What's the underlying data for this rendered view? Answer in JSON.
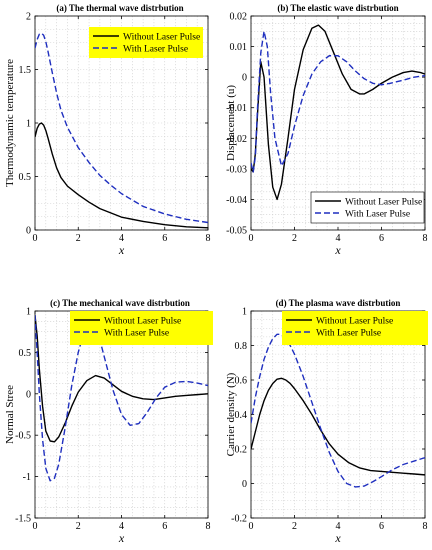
{
  "chart_data": [
    {
      "type": "line",
      "title": "(a) The thermal wave distrbution",
      "xlabel": "x",
      "ylabel": "Thermodynamic temperature",
      "xlim": [
        0,
        8
      ],
      "ylim": [
        0,
        2
      ],
      "xticks": [
        0,
        2,
        4,
        6,
        8
      ],
      "xtick_labels": [
        "0",
        "2",
        "4",
        "6",
        "8"
      ],
      "yticks": [
        0,
        0.5,
        1,
        1.5,
        2
      ],
      "ytick_labels": [
        "0",
        "0.5",
        "1",
        "1.5",
        "2"
      ],
      "grid": true,
      "legend": "top-right",
      "legend_bg": "#ffff00",
      "series": [
        {
          "name": "Without Laser Pulse",
          "style": "solid",
          "color": "#000000",
          "x": [
            0,
            0.1,
            0.2,
            0.3,
            0.4,
            0.5,
            0.6,
            0.8,
            1.0,
            1.2,
            1.5,
            2.0,
            2.5,
            3.0,
            3.5,
            4.0,
            5.0,
            6.0,
            7.0,
            8.0
          ],
          "y": [
            0.87,
            0.95,
            0.99,
            1.0,
            0.98,
            0.93,
            0.86,
            0.71,
            0.58,
            0.49,
            0.41,
            0.33,
            0.26,
            0.2,
            0.16,
            0.12,
            0.08,
            0.05,
            0.03,
            0.02
          ]
        },
        {
          "name": "With Laser Pulse",
          "style": "dashed",
          "color": "#1f2fbf",
          "x": [
            0,
            0.1,
            0.2,
            0.3,
            0.4,
            0.5,
            0.6,
            0.8,
            1.0,
            1.2,
            1.5,
            2.0,
            2.5,
            3.0,
            3.5,
            4.0,
            5.0,
            6.0,
            7.0,
            8.0
          ],
          "y": [
            1.7,
            1.78,
            1.83,
            1.84,
            1.82,
            1.76,
            1.67,
            1.47,
            1.28,
            1.12,
            0.96,
            0.77,
            0.63,
            0.51,
            0.42,
            0.34,
            0.22,
            0.15,
            0.1,
            0.07
          ]
        }
      ]
    },
    {
      "type": "line",
      "title": "(b) The elastic wave distrbution",
      "xlabel": "x",
      "ylabel": "Displacement (u)",
      "xlim": [
        0,
        8
      ],
      "ylim": [
        -0.05,
        0.02
      ],
      "xticks": [
        0,
        2,
        4,
        6,
        8
      ],
      "xtick_labels": [
        "0",
        "2",
        "4",
        "6",
        "8"
      ],
      "yticks": [
        -0.05,
        -0.04,
        -0.03,
        -0.02,
        -0.01,
        0,
        0.01,
        0.02
      ],
      "ytick_labels": [
        "-0.05",
        "-0.04",
        "-0.03",
        "-0.02",
        "-0.01",
        "0",
        "0.01",
        "0.02"
      ],
      "grid": true,
      "legend": "bottom-right",
      "legend_bg": "#ffffff",
      "series": [
        {
          "name": "Without Laser Pulse",
          "style": "solid",
          "color": "#000000",
          "x": [
            0,
            0.1,
            0.2,
            0.3,
            0.45,
            0.6,
            0.8,
            1.0,
            1.2,
            1.4,
            1.7,
            2.0,
            2.4,
            2.8,
            3.1,
            3.4,
            3.8,
            4.2,
            4.6,
            5.0,
            5.2,
            5.6,
            6.0,
            6.5,
            7.0,
            7.4,
            7.8,
            8.0
          ],
          "y": [
            -0.03,
            -0.031,
            -0.025,
            -0.012,
            0.005,
            0.0,
            -0.022,
            -0.036,
            -0.04,
            -0.035,
            -0.02,
            -0.004,
            0.009,
            0.016,
            0.017,
            0.015,
            0.008,
            0.001,
            -0.004,
            -0.0055,
            -0.0055,
            -0.004,
            -0.002,
            0.0,
            0.0015,
            0.002,
            0.0015,
            0.001
          ]
        },
        {
          "name": "With Laser Pulse",
          "style": "dashed",
          "color": "#1f2fbf",
          "x": [
            0,
            0.1,
            0.2,
            0.3,
            0.45,
            0.6,
            0.75,
            0.9,
            1.1,
            1.4,
            1.7,
            2.0,
            2.4,
            2.8,
            3.2,
            3.6,
            4.0,
            4.4,
            4.8,
            5.2,
            5.6,
            6.0,
            6.4,
            7.0,
            7.5,
            8.0
          ],
          "y": [
            -0.028,
            -0.031,
            -0.026,
            -0.01,
            0.008,
            0.015,
            0.01,
            -0.005,
            -0.02,
            -0.029,
            -0.025,
            -0.016,
            -0.006,
            0.001,
            0.005,
            0.007,
            0.007,
            0.005,
            0.002,
            -0.0005,
            -0.002,
            -0.0025,
            -0.002,
            -0.001,
            0.0,
            0.0005
          ]
        }
      ]
    },
    {
      "type": "line",
      "title": "(c) The mechanical wave distrbution",
      "xlabel": "x",
      "ylabel": "Normal Stree",
      "xlim": [
        0,
        8
      ],
      "ylim": [
        -1.5,
        1
      ],
      "xticks": [
        0,
        2,
        4,
        6,
        8
      ],
      "xtick_labels": [
        "0",
        "2",
        "4",
        "6",
        "8"
      ],
      "yticks": [
        -1.5,
        -1,
        -0.5,
        0,
        0.5,
        1
      ],
      "ytick_labels": [
        "-1.5",
        "-1",
        "-0.5",
        "0",
        "0.5",
        "1"
      ],
      "grid": true,
      "legend": "top-right",
      "legend_bg": "#ffff00",
      "series": [
        {
          "name": "Without Laser Pulse",
          "style": "solid",
          "color": "#000000",
          "x": [
            0,
            0.1,
            0.2,
            0.35,
            0.5,
            0.7,
            0.9,
            1.1,
            1.4,
            1.7,
            2.0,
            2.4,
            2.8,
            3.2,
            3.6,
            4.0,
            4.5,
            5.0,
            5.5,
            6.0,
            6.5,
            7.0,
            7.5,
            8.0
          ],
          "y": [
            0.95,
            0.7,
            0.3,
            -0.15,
            -0.45,
            -0.57,
            -0.58,
            -0.52,
            -0.35,
            -0.15,
            0.02,
            0.16,
            0.22,
            0.19,
            0.11,
            0.03,
            -0.03,
            -0.06,
            -0.07,
            -0.05,
            -0.03,
            -0.02,
            -0.01,
            0.0
          ]
        },
        {
          "name": "With Laser Pulse",
          "style": "dashed",
          "color": "#1f2fbf",
          "x": [
            0,
            0.1,
            0.2,
            0.35,
            0.5,
            0.7,
            0.9,
            1.1,
            1.4,
            1.7,
            2.0,
            2.3,
            2.6,
            2.9,
            3.2,
            3.6,
            4.0,
            4.4,
            4.8,
            5.2,
            5.6,
            6.0,
            6.5,
            7.0,
            7.5,
            8.0
          ],
          "y": [
            0.95,
            0.5,
            0.0,
            -0.55,
            -0.9,
            -1.05,
            -1.02,
            -0.85,
            -0.4,
            0.1,
            0.5,
            0.78,
            0.86,
            0.75,
            0.45,
            0.05,
            -0.25,
            -0.38,
            -0.36,
            -0.22,
            -0.05,
            0.08,
            0.14,
            0.15,
            0.13,
            0.1
          ]
        }
      ]
    },
    {
      "type": "line",
      "title": "(d) The plasma wave distrbution",
      "xlabel": "x",
      "ylabel": "Carrier density (N)",
      "xlim": [
        0,
        8
      ],
      "ylim": [
        -0.2,
        1
      ],
      "xticks": [
        0,
        2,
        4,
        6,
        8
      ],
      "xtick_labels": [
        "0",
        "2",
        "4",
        "6",
        "8"
      ],
      "yticks": [
        -0.2,
        0,
        0.2,
        0.4,
        0.6,
        0.8,
        1
      ],
      "ytick_labels": [
        "-0.2",
        "0",
        "0.2",
        "0.4",
        "0.6",
        "0.8",
        "1"
      ],
      "grid": true,
      "legend": "top-right",
      "legend_bg": "#ffff00",
      "series": [
        {
          "name": "Without Laser Pulse",
          "style": "solid",
          "color": "#000000",
          "x": [
            0,
            0.2,
            0.4,
            0.6,
            0.8,
            1.0,
            1.2,
            1.4,
            1.6,
            1.8,
            2.0,
            2.4,
            2.8,
            3.2,
            3.6,
            4.0,
            4.5,
            5.0,
            5.5,
            6.0,
            6.5,
            7.0,
            7.5,
            8.0
          ],
          "y": [
            0.2,
            0.3,
            0.4,
            0.48,
            0.54,
            0.58,
            0.605,
            0.61,
            0.6,
            0.58,
            0.55,
            0.48,
            0.4,
            0.31,
            0.23,
            0.17,
            0.12,
            0.09,
            0.075,
            0.07,
            0.065,
            0.06,
            0.055,
            0.05
          ]
        },
        {
          "name": "With Laser Pulse",
          "style": "dashed",
          "color": "#1f2fbf",
          "x": [
            0,
            0.2,
            0.4,
            0.6,
            0.8,
            1.0,
            1.2,
            1.4,
            1.6,
            1.8,
            2.0,
            2.4,
            2.8,
            3.2,
            3.6,
            4.0,
            4.4,
            4.8,
            5.2,
            5.6,
            6.0,
            6.5,
            7.0,
            7.5,
            8.0
          ],
          "y": [
            0.35,
            0.5,
            0.62,
            0.72,
            0.79,
            0.84,
            0.865,
            0.865,
            0.84,
            0.8,
            0.75,
            0.62,
            0.47,
            0.32,
            0.18,
            0.07,
            0.0,
            -0.02,
            -0.015,
            0.01,
            0.04,
            0.08,
            0.11,
            0.13,
            0.15
          ]
        }
      ]
    }
  ]
}
